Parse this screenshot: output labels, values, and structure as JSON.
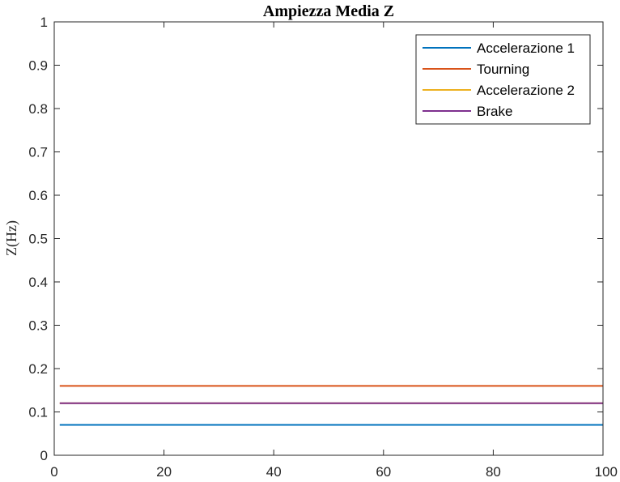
{
  "chart_data": {
    "type": "line",
    "title": "Ampiezza Media Z",
    "xlabel": "",
    "ylabel": "Z(Hz)",
    "xlim": [
      0,
      100
    ],
    "ylim": [
      0,
      1
    ],
    "x_ticks": [
      0,
      20,
      40,
      60,
      80,
      100
    ],
    "y_ticks": [
      0,
      0.1,
      0.2,
      0.3,
      0.4,
      0.5,
      0.6,
      0.7,
      0.8,
      0.9,
      1
    ],
    "x_tick_labels": [
      "0",
      "20",
      "40",
      "60",
      "80",
      "100"
    ],
    "y_tick_labels": [
      "0",
      "0.1",
      "0.2",
      "0.3",
      "0.4",
      "0.5",
      "0.6",
      "0.7",
      "0.8",
      "0.9",
      "1"
    ],
    "grid": false,
    "legend_position": "top-right",
    "series": [
      {
        "name": "Accelerazione 1",
        "color": "#0072BD",
        "x": [
          1,
          100
        ],
        "y": [
          0.07,
          0.07
        ]
      },
      {
        "name": "Tourning",
        "color": "#D95319",
        "x": [
          1,
          100
        ],
        "y": [
          0.16,
          0.16
        ]
      },
      {
        "name": "Accelerazione 2",
        "color": "#EDB120",
        "x": [
          1,
          100
        ],
        "y": [
          0.12,
          0.12
        ]
      },
      {
        "name": "Brake",
        "color": "#7E2F8E",
        "x": [
          1,
          100
        ],
        "y": [
          0.12,
          0.12
        ]
      }
    ]
  }
}
